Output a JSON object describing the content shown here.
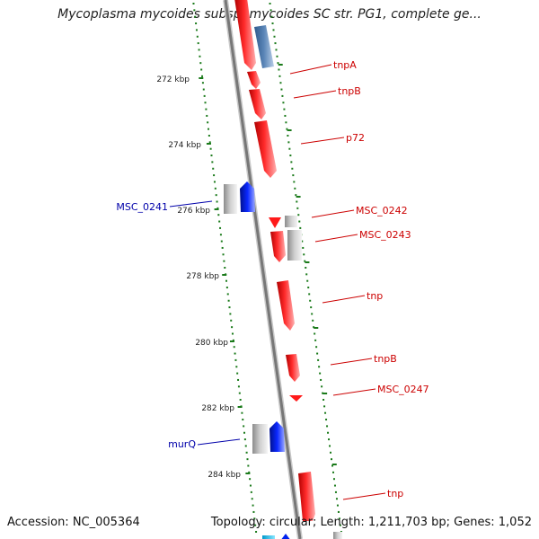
{
  "header": {
    "title": "Mycoplasma mycoides subsp. mycoides SC str. PG1, complete ge..."
  },
  "footer": {
    "accession": "Accession: NC_005364",
    "summary": "Topology: circular; Length: 1,211,703 bp; Genes: 1,052"
  },
  "scale": {
    "ticks": [
      "272 kbp",
      "274 kbp",
      "276 kbp",
      "278 kbp",
      "280 kbp",
      "282 kbp",
      "284 kbp"
    ]
  },
  "labels": {
    "right": [
      "tnpA",
      "tnpB",
      "p72",
      "MSC_0242",
      "MSC_0243",
      "tnp",
      "tnpB",
      "MSC_0247",
      "tnp"
    ],
    "left": [
      "MSC_0241",
      "murQ"
    ]
  },
  "colors": {
    "backbone": "#888888",
    "ticks": "#1a7a1a",
    "right_label": "#cc0000",
    "left_label": "#0000aa",
    "feature_red": "#ff1a1a",
    "feature_blue": "#0022ee",
    "feature_steel": "#5b86b8",
    "feature_gray": "#bdbdbd"
  }
}
